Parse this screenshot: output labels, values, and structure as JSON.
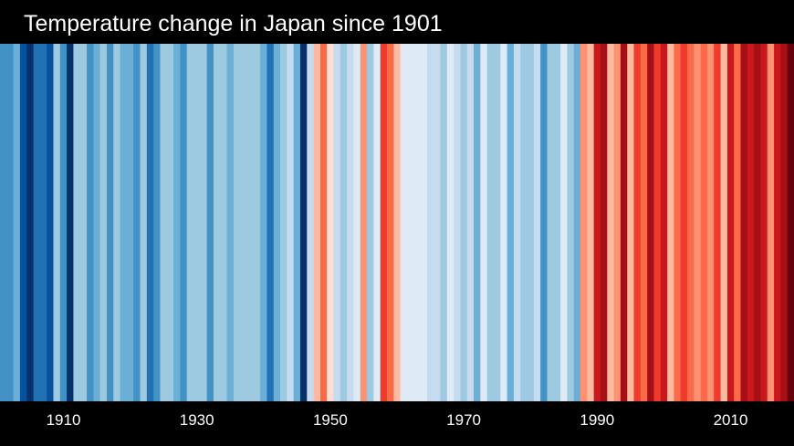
{
  "chart_data": {
    "type": "heatmap",
    "title": "Temperature change in Japan since 1901",
    "x_start_year": 1901,
    "x_end_year": 2019,
    "x_ticks": [
      "1910",
      "1930",
      "1950",
      "1970",
      "1990",
      "2010"
    ],
    "x_tick_values": [
      1910,
      1930,
      1950,
      1970,
      1990,
      2010
    ],
    "color_scale": {
      "levels": [
        -4,
        -3,
        -2,
        -1,
        0,
        1,
        2,
        3,
        4
      ],
      "colors": [
        "#08306b",
        "#08519c",
        "#2171b5",
        "#4292c6",
        "#6baed6",
        "#9ecae1",
        "#c6dbef",
        "#deebf7",
        "#fee0d2",
        "#fcbba1",
        "#fc9272",
        "#fb6a4a",
        "#ef3b2c",
        "#cb181d",
        "#a50f15",
        "#67000d"
      ],
      "min": -4,
      "max": 4,
      "blue_to_red": true
    },
    "values": [
      -2.5,
      -2.5,
      -2.0,
      -3.2,
      -3.8,
      -3.0,
      -3.0,
      -3.2,
      -1.5,
      -2.5,
      -3.9,
      -1.5,
      -1.5,
      -2.5,
      -2.0,
      -1.5,
      -2.5,
      -1.5,
      -2.0,
      -1.8,
      -2.5,
      -1.5,
      -3.0,
      -2.3,
      -1.5,
      -1.5,
      -2.0,
      -2.5,
      -1.5,
      -1.2,
      -1.2,
      -2.5,
      -1.5,
      -1.2,
      -2.0,
      -1.2,
      -1.2,
      -1.2,
      -1.5,
      -2.0,
      -3.0,
      -2.0,
      -1.2,
      -0.6,
      -1.8,
      -4.0,
      -0.9,
      0.8,
      1.5,
      0.2,
      -1.0,
      -1.5,
      -1.0,
      -0.2,
      1.0,
      -1.3,
      -0.5,
      2.0,
      1.8,
      0.6,
      -0.5,
      -0.3,
      -0.3,
      -0.5,
      -1.0,
      -0.9,
      -1.2,
      -0.4,
      -1.0,
      -1.5,
      -0.8,
      -2.0,
      -0.3,
      -1.5,
      -1.5,
      -0.5,
      -1.8,
      -0.8,
      -1.5,
      -1.5,
      -1.0,
      -2.3,
      -1.2,
      -1.2,
      -0.5,
      -1.2,
      -2.0,
      1.2,
      0.6,
      2.5,
      3.3,
      0.5,
      1.0,
      3.0,
      0.8,
      2.3,
      1.5,
      3.4,
      2.3,
      2.6,
      0.8,
      1.5,
      2.0,
      1.5,
      1.0,
      1.5,
      1.2,
      2.0,
      0.8,
      2.5,
      1.5,
      3.0,
      2.5,
      3.0,
      2.5,
      1.0,
      2.8,
      3.0,
      3.5
    ]
  },
  "axis_color": "#ffffff",
  "background_color": "#000000"
}
